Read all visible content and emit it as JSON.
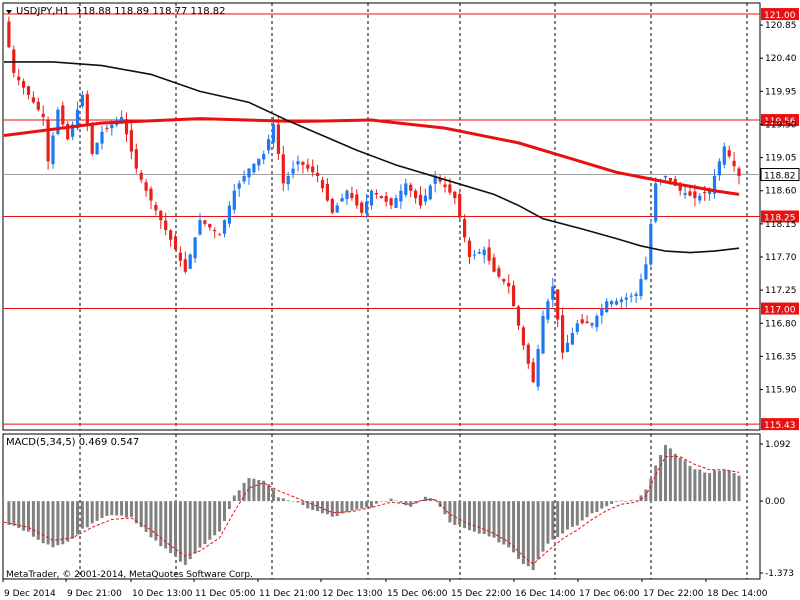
{
  "header": {
    "symbol": "USDJPY,H1",
    "ohlc": "118.88 118.89 118.77 118.82"
  },
  "macd": {
    "label": "MACD(5,34,5) 0.469 0.547"
  },
  "copyright": "MetaTrader, © 2001-2014, MetaQuotes Software Corp.",
  "colors": {
    "bull": "#1e78f0",
    "bear": "#e8201c",
    "slow_ma": "#e81010",
    "fast_ma": "#101010",
    "level_box": "#e81010",
    "macd_bar": "#808080",
    "signal": "#e81010"
  },
  "chart_data": [
    {
      "type": "candlestick",
      "title": "USDJPY,H1",
      "ylim": [
        115.35,
        121.15
      ],
      "y_ticks": [
        "120.85",
        "120.40",
        "119.95",
        "119.50",
        "119.05",
        "118.60",
        "118.15",
        "117.70",
        "117.25",
        "116.80",
        "116.35",
        "115.90"
      ],
      "x_ticks": [
        "9 Dec 2014",
        "9 Dec 21:00",
        "10 Dec 13:00",
        "11 Dec 05:00",
        "11 Dec 21:00",
        "12 Dec 13:00",
        "15 Dec 06:00",
        "15 Dec 22:00",
        "16 Dec 14:00",
        "17 Dec 06:00",
        "17 Dec 22:00",
        "18 Dec 14:00"
      ],
      "levels": [
        "121.00",
        "119.56",
        "118.25",
        "117.00",
        "115.43"
      ],
      "current_price": "118.82",
      "anchors": [
        [
          0,
          120.9
        ],
        [
          2,
          120.2
        ],
        [
          5,
          119.9
        ],
        [
          8,
          119.6
        ],
        [
          9,
          119.0
        ],
        [
          11,
          119.7
        ],
        [
          13,
          119.3
        ],
        [
          16,
          119.9
        ],
        [
          18,
          119.1
        ],
        [
          20,
          119.4
        ],
        [
          24,
          119.6
        ],
        [
          27,
          118.9
        ],
        [
          29,
          118.6
        ],
        [
          32,
          118.2
        ],
        [
          35,
          117.8
        ],
        [
          37,
          117.5
        ],
        [
          40,
          118.2
        ],
        [
          44,
          118.0
        ],
        [
          47,
          118.6
        ],
        [
          50,
          118.9
        ],
        [
          53,
          119.1
        ],
        [
          55,
          119.5
        ],
        [
          57,
          118.7
        ],
        [
          60,
          119.0
        ],
        [
          64,
          118.8
        ],
        [
          67,
          118.3
        ],
        [
          70,
          118.6
        ],
        [
          73,
          118.3
        ],
        [
          75,
          118.6
        ],
        [
          79,
          118.4
        ],
        [
          82,
          118.7
        ],
        [
          85,
          118.4
        ],
        [
          88,
          118.8
        ],
        [
          92,
          118.5
        ],
        [
          95,
          117.7
        ],
        [
          98,
          117.8
        ],
        [
          100,
          117.5
        ],
        [
          103,
          117.3
        ],
        [
          106,
          116.5
        ],
        [
          108,
          116.0
        ],
        [
          110,
          116.9
        ],
        [
          112,
          117.3
        ],
        [
          114,
          116.4
        ],
        [
          117,
          116.8
        ],
        [
          120,
          116.8
        ],
        [
          123,
          117.1
        ],
        [
          125,
          117.1
        ],
        [
          129,
          117.2
        ],
        [
          131,
          117.6
        ],
        [
          133,
          118.7
        ],
        [
          135,
          118.8
        ],
        [
          138,
          118.6
        ],
        [
          141,
          118.5
        ],
        [
          144,
          118.6
        ],
        [
          147,
          119.2
        ],
        [
          150,
          118.8
        ]
      ],
      "slow_ma_points": [
        [
          0,
          119.35
        ],
        [
          20,
          119.52
        ],
        [
          40,
          119.58
        ],
        [
          60,
          119.54
        ],
        [
          75,
          119.56
        ],
        [
          90,
          119.45
        ],
        [
          105,
          119.25
        ],
        [
          115,
          119.05
        ],
        [
          125,
          118.85
        ],
        [
          135,
          118.72
        ],
        [
          145,
          118.6
        ],
        [
          150,
          118.55
        ]
      ],
      "fast_ma_points": [
        [
          0,
          120.35
        ],
        [
          10,
          120.35
        ],
        [
          20,
          120.3
        ],
        [
          30,
          120.18
        ],
        [
          40,
          119.95
        ],
        [
          50,
          119.8
        ],
        [
          58,
          119.55
        ],
        [
          65,
          119.35
        ],
        [
          72,
          119.15
        ],
        [
          80,
          118.95
        ],
        [
          90,
          118.75
        ],
        [
          100,
          118.55
        ],
        [
          105,
          118.4
        ],
        [
          110,
          118.22
        ],
        [
          118,
          118.08
        ],
        [
          125,
          117.95
        ],
        [
          130,
          117.85
        ],
        [
          135,
          117.78
        ],
        [
          140,
          117.76
        ],
        [
          145,
          117.78
        ],
        [
          150,
          117.82
        ]
      ]
    },
    {
      "type": "bar",
      "title": "MACD(5,34,5)",
      "ylim": [
        -1.373,
        1.092
      ],
      "y_ticks": [
        "1.092",
        "0.00",
        "-1.373"
      ],
      "series": [
        {
          "name": "MACD",
          "points": [
            [
              0,
              -0.4
            ],
            [
              5,
              -0.6
            ],
            [
              10,
              -0.9
            ],
            [
              14,
              -0.7
            ],
            [
              18,
              -0.4
            ],
            [
              22,
              -0.25
            ],
            [
              26,
              -0.3
            ],
            [
              30,
              -0.7
            ],
            [
              34,
              -1.0
            ],
            [
              37,
              -1.2
            ],
            [
              40,
              -0.9
            ],
            [
              44,
              -0.6
            ],
            [
              47,
              0.1
            ],
            [
              50,
              0.45
            ],
            [
              53,
              0.4
            ],
            [
              56,
              0.1
            ],
            [
              60,
              -0.05
            ],
            [
              64,
              -0.2
            ],
            [
              67,
              -0.3
            ],
            [
              71,
              -0.2
            ],
            [
              75,
              -0.1
            ],
            [
              79,
              0.05
            ],
            [
              83,
              -0.1
            ],
            [
              86,
              0.1
            ],
            [
              88,
              0.05
            ],
            [
              91,
              -0.4
            ],
            [
              94,
              -0.5
            ],
            [
              97,
              -0.6
            ],
            [
              100,
              -0.7
            ],
            [
              103,
              -0.9
            ],
            [
              106,
              -1.2
            ],
            [
              108,
              -1.3
            ],
            [
              111,
              -0.8
            ],
            [
              114,
              -0.6
            ],
            [
              117,
              -0.45
            ],
            [
              120,
              -0.25
            ],
            [
              123,
              -0.1
            ],
            [
              126,
              0.0
            ],
            [
              129,
              0.0
            ],
            [
              131,
              0.2
            ],
            [
              133,
              0.7
            ],
            [
              135,
              1.05
            ],
            [
              138,
              0.85
            ],
            [
              141,
              0.6
            ],
            [
              144,
              0.55
            ],
            [
              147,
              0.62
            ],
            [
              150,
              0.47
            ]
          ]
        },
        {
          "name": "Signal",
          "points": [
            [
              0,
              -0.4
            ],
            [
              5,
              -0.5
            ],
            [
              10,
              -0.75
            ],
            [
              14,
              -0.7
            ],
            [
              18,
              -0.5
            ],
            [
              22,
              -0.35
            ],
            [
              26,
              -0.32
            ],
            [
              30,
              -0.55
            ],
            [
              34,
              -0.85
            ],
            [
              37,
              -1.05
            ],
            [
              40,
              -0.95
            ],
            [
              44,
              -0.7
            ],
            [
              47,
              -0.2
            ],
            [
              50,
              0.25
            ],
            [
              53,
              0.35
            ],
            [
              56,
              0.2
            ],
            [
              60,
              0.05
            ],
            [
              64,
              -0.1
            ],
            [
              67,
              -0.22
            ],
            [
              71,
              -0.2
            ],
            [
              75,
              -0.12
            ],
            [
              79,
              -0.02
            ],
            [
              83,
              -0.06
            ],
            [
              86,
              0.03
            ],
            [
              88,
              0.03
            ],
            [
              91,
              -0.25
            ],
            [
              94,
              -0.4
            ],
            [
              97,
              -0.5
            ],
            [
              100,
              -0.62
            ],
            [
              103,
              -0.78
            ],
            [
              106,
              -1.05
            ],
            [
              108,
              -1.2
            ],
            [
              111,
              -0.95
            ],
            [
              114,
              -0.72
            ],
            [
              117,
              -0.55
            ],
            [
              120,
              -0.35
            ],
            [
              123,
              -0.18
            ],
            [
              126,
              -0.06
            ],
            [
              129,
              -0.02
            ],
            [
              131,
              0.1
            ],
            [
              133,
              0.5
            ],
            [
              135,
              0.85
            ],
            [
              138,
              0.85
            ],
            [
              141,
              0.7
            ],
            [
              144,
              0.6
            ],
            [
              147,
              0.6
            ],
            [
              150,
              0.55
            ]
          ]
        }
      ]
    }
  ]
}
